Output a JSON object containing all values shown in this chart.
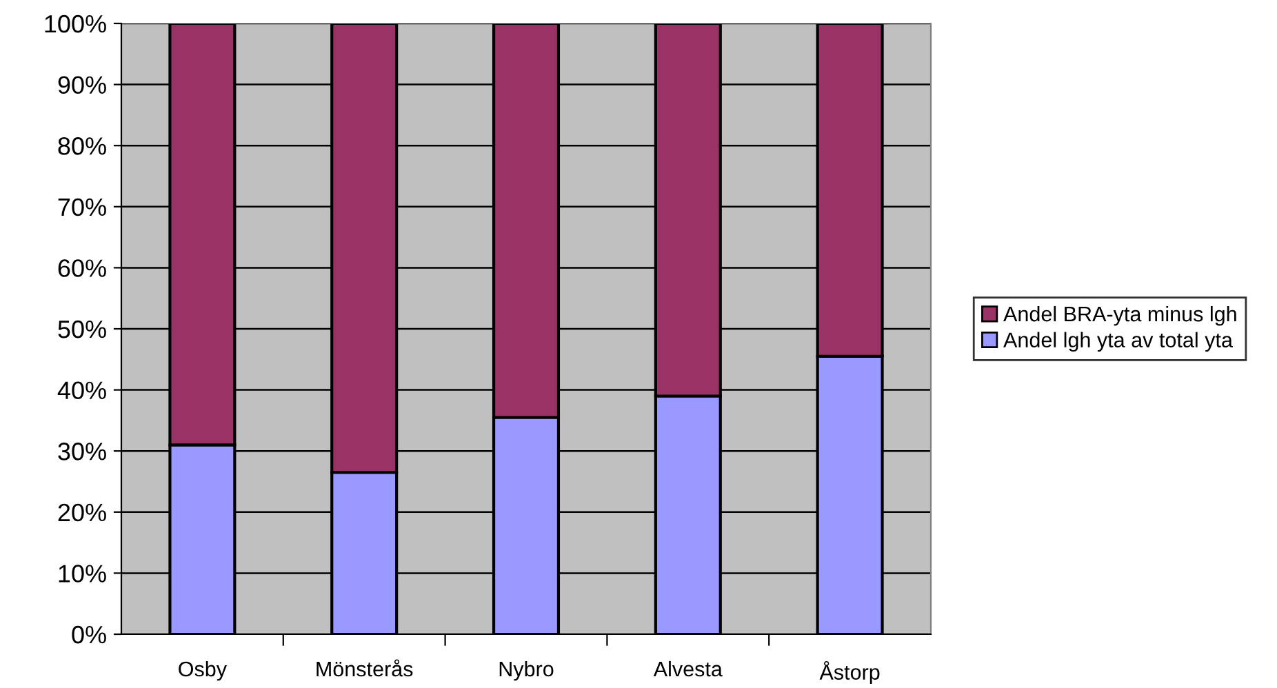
{
  "chart_data": {
    "type": "bar",
    "stacked": true,
    "categories": [
      "Osby",
      "Mönsterås",
      "Nybro",
      "Alvesta",
      "Åstorp"
    ],
    "series": [
      {
        "name": "Andel lgh yta av total yta",
        "color": "#9999ff",
        "values": [
          31,
          26.5,
          35.5,
          39,
          45.5
        ]
      },
      {
        "name": "Andel BRA-yta minus lgh",
        "color": "#993366",
        "values": [
          69,
          73.5,
          64.5,
          61,
          54.5
        ]
      }
    ],
    "ylim": [
      0,
      100
    ],
    "yticks": [
      {
        "value": 0,
        "label": "0%"
      },
      {
        "value": 10,
        "label": "10%"
      },
      {
        "value": 20,
        "label": "20%"
      },
      {
        "value": 30,
        "label": "30%"
      },
      {
        "value": 40,
        "label": "40%"
      },
      {
        "value": 50,
        "label": "50%"
      },
      {
        "value": 60,
        "label": "60%"
      },
      {
        "value": 70,
        "label": "70%"
      },
      {
        "value": 80,
        "label": "80%"
      },
      {
        "value": 90,
        "label": "90%"
      },
      {
        "value": 100,
        "label": "100%"
      }
    ],
    "grid": "y",
    "legend": "right"
  }
}
